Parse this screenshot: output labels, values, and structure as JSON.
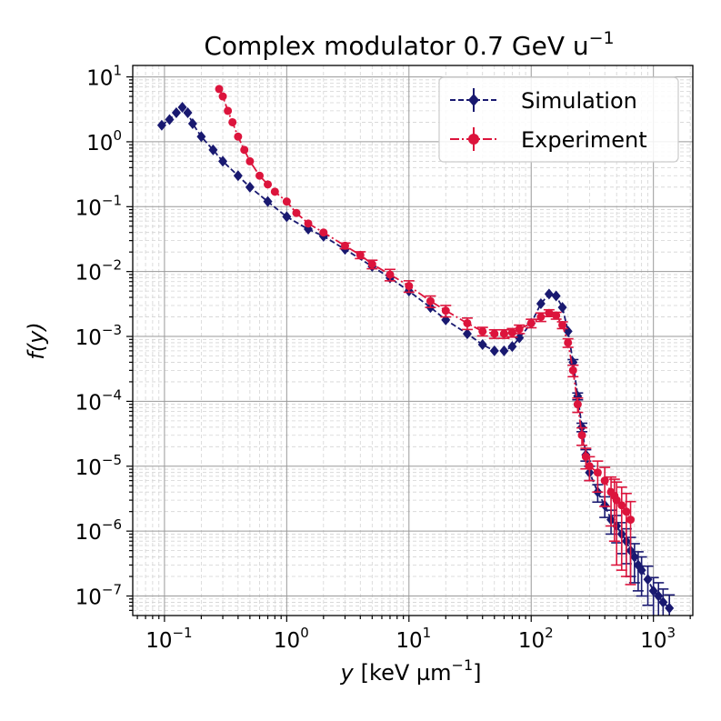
{
  "chart_data": {
    "type": "line",
    "title": "Complex modulator 0.7 GeV u",
    "title_superscript": "−1",
    "xlabel_var": "y",
    "xlabel_units": "[keV µm",
    "xlabel_units_sup": "−1",
    "xlabel_units_close": "]",
    "ylabel": "f(y)",
    "xscale": "log",
    "yscale": "log",
    "xlim": [
      0.055,
      2100
    ],
    "ylim": [
      5e-08,
      15
    ],
    "grid": true,
    "legend_position": "upper right",
    "x_ticks": [
      {
        "value": 0.1,
        "base": "10",
        "exp": "−1"
      },
      {
        "value": 1,
        "base": "10",
        "exp": "0"
      },
      {
        "value": 10,
        "base": "10",
        "exp": "1"
      },
      {
        "value": 100,
        "base": "10",
        "exp": "2"
      },
      {
        "value": 1000,
        "base": "10",
        "exp": "3"
      }
    ],
    "y_ticks": [
      {
        "value": 10,
        "base": "10",
        "exp": "1"
      },
      {
        "value": 1,
        "base": "10",
        "exp": "0"
      },
      {
        "value": 0.1,
        "base": "10",
        "exp": "−1"
      },
      {
        "value": 0.01,
        "base": "10",
        "exp": "−2"
      },
      {
        "value": 0.001,
        "base": "10",
        "exp": "−3"
      },
      {
        "value": 0.0001,
        "base": "10",
        "exp": "−4"
      },
      {
        "value": 1e-05,
        "base": "10",
        "exp": "−5"
      },
      {
        "value": 1e-06,
        "base": "10",
        "exp": "−6"
      },
      {
        "value": 1e-07,
        "base": "10",
        "exp": "−7"
      }
    ],
    "series": [
      {
        "name": "Simulation",
        "color": "#191970",
        "linestyle": "dashed",
        "marker": "diamond",
        "x": [
          0.095,
          0.11,
          0.125,
          0.14,
          0.155,
          0.17,
          0.2,
          0.25,
          0.3,
          0.4,
          0.5,
          0.7,
          1.0,
          1.5,
          2,
          3,
          5,
          7,
          10,
          15,
          20,
          30,
          40,
          50,
          60,
          70,
          80,
          100,
          120,
          140,
          160,
          180,
          200,
          220,
          240,
          260,
          280,
          300,
          350,
          400,
          450,
          500,
          550,
          600,
          650,
          700,
          750,
          800,
          900,
          1000,
          1100,
          1200,
          1350
        ],
        "y": [
          1.8,
          2.2,
          2.8,
          3.4,
          2.8,
          1.9,
          1.2,
          0.75,
          0.5,
          0.3,
          0.2,
          0.12,
          0.07,
          0.045,
          0.035,
          0.022,
          0.012,
          0.008,
          0.005,
          0.0028,
          0.0018,
          0.0011,
          0.00075,
          0.0006,
          0.0006,
          0.0007,
          0.00095,
          0.0016,
          0.0032,
          0.0045,
          0.0042,
          0.0028,
          0.0012,
          0.0004,
          0.00012,
          4e-05,
          1.5e-05,
          8e-06,
          4e-06,
          2.5e-06,
          1.5e-06,
          1.2e-06,
          9e-07,
          7e-07,
          5e-07,
          4e-07,
          3e-07,
          2.5e-07,
          1.8e-07,
          1.2e-07,
          1e-07,
          8e-08,
          6.5e-08
        ],
        "y_rel_err": [
          0.05,
          0.05,
          0.05,
          0.05,
          0.05,
          0.05,
          0.05,
          0.05,
          0.05,
          0.05,
          0.05,
          0.05,
          0.05,
          0.05,
          0.05,
          0.05,
          0.05,
          0.05,
          0.05,
          0.05,
          0.05,
          0.05,
          0.05,
          0.05,
          0.05,
          0.05,
          0.05,
          0.05,
          0.05,
          0.05,
          0.05,
          0.05,
          0.08,
          0.1,
          0.12,
          0.15,
          0.2,
          0.25,
          0.3,
          0.35,
          0.4,
          0.45,
          0.5,
          0.55,
          0.6,
          0.6,
          0.6,
          0.6,
          0.6,
          0.6,
          0.6,
          0.6,
          0.6
        ]
      },
      {
        "name": "Experiment",
        "color": "#dc143c",
        "linestyle": "dashdot",
        "marker": "circle",
        "x": [
          0.28,
          0.3,
          0.33,
          0.36,
          0.4,
          0.45,
          0.5,
          0.6,
          0.7,
          0.8,
          1.0,
          1.2,
          1.5,
          2,
          3,
          4,
          5,
          7,
          10,
          15,
          20,
          30,
          40,
          50,
          60,
          70,
          80,
          100,
          120,
          140,
          160,
          180,
          200,
          220,
          240,
          260,
          280,
          300,
          350,
          400,
          450,
          480,
          500,
          550,
          600,
          650
        ],
        "y": [
          6.5,
          5.0,
          3.0,
          2.0,
          1.2,
          0.75,
          0.5,
          0.3,
          0.22,
          0.17,
          0.12,
          0.08,
          0.055,
          0.04,
          0.025,
          0.018,
          0.013,
          0.009,
          0.006,
          0.0035,
          0.0025,
          0.0016,
          0.0012,
          0.0011,
          0.0011,
          0.00115,
          0.0013,
          0.0016,
          0.002,
          0.0023,
          0.0021,
          0.0015,
          0.0008,
          0.0003,
          9e-05,
          3e-05,
          1.4e-05,
          1e-05,
          8e-06,
          6e-06,
          4e-06,
          3.5e-06,
          3e-06,
          2.5e-06,
          2e-06,
          1.5e-06
        ],
        "y_rel_err": [
          0.06,
          0.06,
          0.06,
          0.06,
          0.06,
          0.06,
          0.06,
          0.06,
          0.06,
          0.06,
          0.06,
          0.06,
          0.06,
          0.06,
          0.1,
          0.12,
          0.15,
          0.2,
          0.2,
          0.2,
          0.2,
          0.2,
          0.15,
          0.15,
          0.15,
          0.15,
          0.15,
          0.15,
          0.15,
          0.12,
          0.12,
          0.12,
          0.15,
          0.2,
          0.25,
          0.3,
          0.35,
          0.4,
          0.5,
          0.6,
          0.7,
          0.8,
          0.9,
          0.9,
          0.9,
          0.9
        ]
      }
    ]
  }
}
